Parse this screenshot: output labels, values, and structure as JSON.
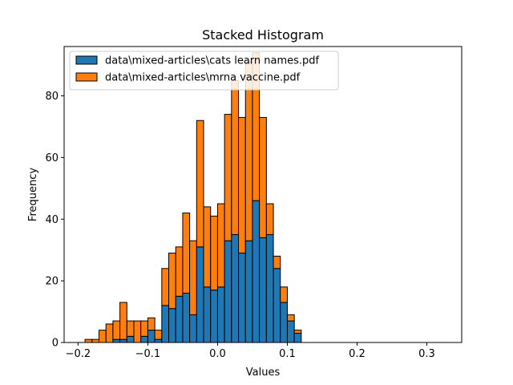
{
  "chart_data": {
    "type": "bar",
    "stacked": true,
    "title": "Stacked Histogram",
    "xlabel": "Values",
    "ylabel": "Frequency",
    "xlim": [
      -0.22,
      0.35
    ],
    "ylim": [
      0,
      96
    ],
    "x_ticks": [
      -0.2,
      -0.1,
      0.0,
      0.1,
      0.2,
      0.3
    ],
    "x_tick_labels": [
      "−0.2",
      "−0.1",
      "0.0",
      "0.1",
      "0.2",
      "0.3"
    ],
    "y_ticks": [
      0,
      20,
      40,
      60,
      80
    ],
    "y_tick_labels": [
      "0",
      "20",
      "40",
      "60",
      "80"
    ],
    "grid": false,
    "legend_position": "top-left",
    "bin_start": -0.19,
    "bin_width": 0.01,
    "series": [
      {
        "name": "data\\mixed-articles\\cats learn names.pdf",
        "color": "#1f77b4",
        "values": [
          0,
          0,
          0,
          0,
          1,
          1,
          2,
          0,
          2,
          4,
          1,
          12,
          11,
          15,
          16,
          9,
          31,
          18,
          17,
          18,
          33,
          35,
          29,
          33,
          46,
          34,
          35,
          24,
          13,
          7,
          3
        ]
      },
      {
        "name": "data\\mixed-articles\\mrna vaccine.pdf",
        "color": "#ff7f0e",
        "values": [
          1,
          1,
          4,
          6,
          6,
          12,
          5,
          7,
          5,
          4,
          3,
          12,
          18,
          16,
          26,
          24,
          41,
          26,
          24,
          27,
          41,
          50,
          44,
          58,
          48,
          39,
          10,
          4,
          5,
          2,
          1
        ]
      }
    ]
  }
}
